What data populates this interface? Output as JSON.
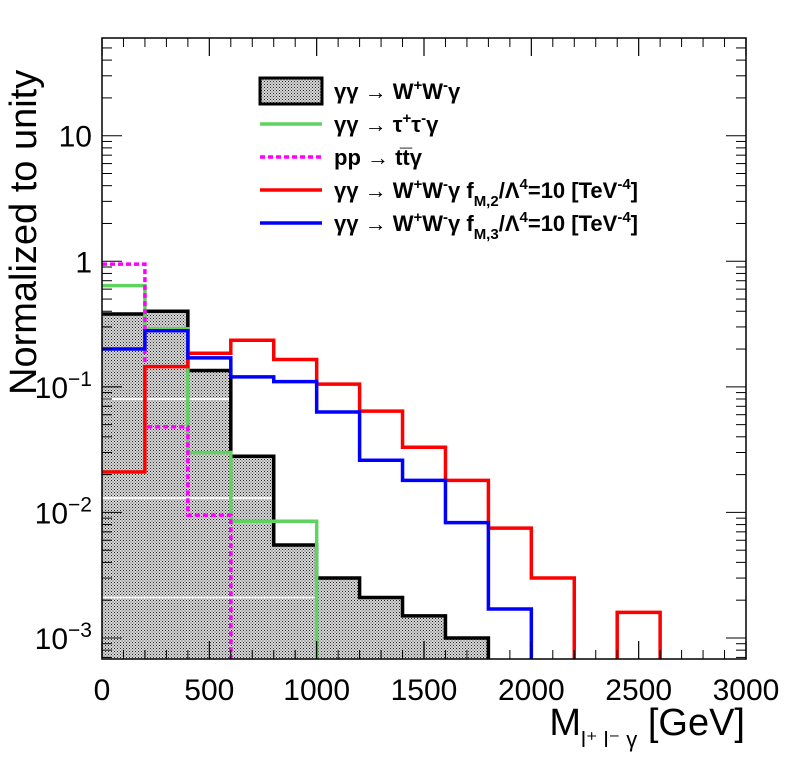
{
  "chart_data": {
    "type": "histogram-step",
    "title": "",
    "xlabel": "M",
    "xlabel_sub": "l⁺ l⁻ γ",
    "xlabel_unit": "[GeV]",
    "ylabel": "Normalized to unity",
    "yscale": "log",
    "xlim": [
      0,
      3000
    ],
    "ylim": [
      0.00068,
      60
    ],
    "x_ticks": [
      "0",
      "500",
      "1000",
      "1500",
      "2000",
      "2500",
      "3000"
    ],
    "x_tick_values": [
      0,
      500,
      1000,
      1500,
      2000,
      2500,
      3000
    ],
    "y_ticks": [
      {
        "value": 0.001,
        "base": "10",
        "exp": "−3"
      },
      {
        "value": 0.01,
        "base": "10",
        "exp": "−2"
      },
      {
        "value": 0.1,
        "base": "10",
        "exp": "−1"
      },
      {
        "value": 1,
        "base": "1",
        "exp": ""
      },
      {
        "value": 10,
        "base": "10",
        "exp": ""
      }
    ],
    "bin_edges": [
      0,
      200,
      400,
      600,
      800,
      1000,
      1200,
      1400,
      1600,
      1800,
      2000,
      2200,
      2400,
      2600,
      2800,
      3000
    ],
    "series": [
      {
        "name": "γγ → W⁺W⁻γ",
        "color": "#000000",
        "style": "filled-hatch",
        "values": [
          0.38,
          0.4,
          0.135,
          0.028,
          0.0055,
          0.003,
          0.0021,
          0.0015,
          0.001,
          0,
          0,
          0,
          0,
          0,
          0
        ]
      },
      {
        "name": "γγ → τ⁺τ⁻γ",
        "color": "#5fd35f",
        "style": "line",
        "values": [
          0.64,
          0.29,
          0.03,
          0.0085,
          0.0085,
          0,
          0,
          0,
          0,
          0,
          0,
          0,
          0,
          0,
          0
        ]
      },
      {
        "name": "pp → t t̅ γ",
        "color": "#ff00ff",
        "style": "dotted",
        "values": [
          0.95,
          0.048,
          0.0095,
          0,
          0,
          0,
          0,
          0,
          0,
          0,
          0,
          0,
          0,
          0,
          0
        ]
      },
      {
        "name": "γγ → W⁺W⁻γ f_M,2/Λ⁴=10 [TeV⁻⁴]",
        "color": "#ff0000",
        "style": "line",
        "values": [
          0.021,
          0.145,
          0.185,
          0.235,
          0.165,
          0.105,
          0.064,
          0.033,
          0.018,
          0.0075,
          0.003,
          0,
          0.0016,
          0,
          0
        ]
      },
      {
        "name": "γγ → W⁺W⁻γ f_M,3/Λ⁴=10 [TeV⁻⁴]",
        "color": "#0000ff",
        "style": "line",
        "values": [
          0.2,
          0.28,
          0.17,
          0.12,
          0.11,
          0.063,
          0.026,
          0.018,
          0.0083,
          0.0017,
          0,
          0,
          0,
          0,
          0
        ]
      }
    ],
    "legend": [
      {
        "pre": "γγ  → ",
        "main": "W",
        "sup1": "+",
        "main2": "W",
        "sup2": "-",
        "post": "γ",
        "tail": ""
      },
      {
        "pre": "γγ  → ",
        "main": "τ",
        "sup1": "+",
        "main2": "τ",
        "sup2": "-",
        "post": "γ",
        "tail": ""
      },
      {
        "pre": "pp  → ",
        "main": "tt̅",
        "sup1": "",
        "main2": "",
        "sup2": "",
        "post": "γ",
        "tail": ""
      },
      {
        "pre": "γγ  → ",
        "main": "W",
        "sup1": "+",
        "main2": "W",
        "sup2": "-",
        "post": "γ f",
        "sub": "M,2",
        "tail": "/Λ",
        "sup3": "4",
        "tail2": "=10 [TeV",
        "sup4": "-4",
        "tail3": "]"
      },
      {
        "pre": "γγ  → ",
        "main": "W",
        "sup1": "+",
        "main2": "W",
        "sup2": "-",
        "post": "γ f",
        "sub": "M,3",
        "tail": "/Λ",
        "sup3": "4",
        "tail2": "=10 [TeV",
        "sup4": "-4",
        "tail3": "]"
      }
    ],
    "legend_placement": "top-right",
    "grid": false
  }
}
